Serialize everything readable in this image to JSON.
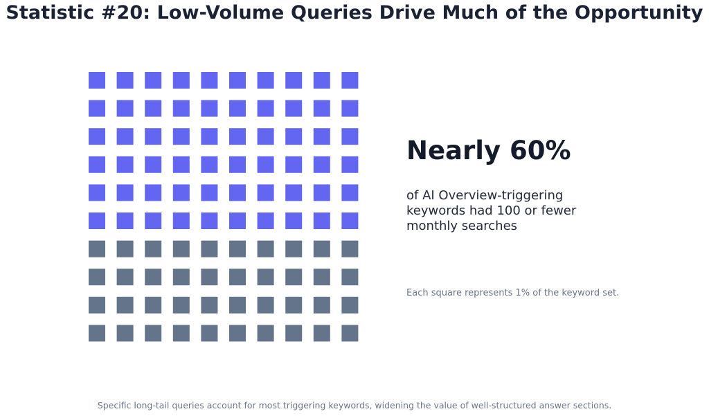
{
  "title": "Statistic #20: Low-Volume Queries Drive Much of the Opportunity",
  "headline": "Nearly 60%",
  "description": "of AI Overview-triggering keywords had 100 or fewer monthly searches",
  "note": "Each square represents 1% of the keyword set.",
  "footer": "Specific long-tail queries account for most triggering keywords, widening the value of well-structured answer sections.",
  "chart_data": {
    "type": "waffle",
    "total_squares": 100,
    "rows": 10,
    "columns": 10,
    "highlighted": 60,
    "highlight_color": "#6366f1",
    "base_color": "#64748b"
  }
}
